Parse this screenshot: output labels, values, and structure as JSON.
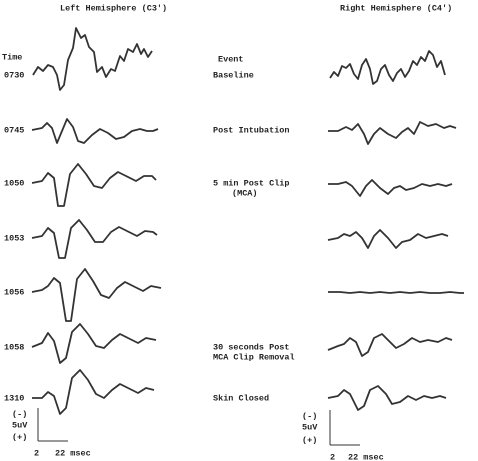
{
  "header": {
    "left_title": "Left Hemisphere (C3')",
    "right_title": "Right Hemisphere (C4')",
    "time_label": "Time",
    "event_label": "Event"
  },
  "rows": [
    {
      "time": "0730",
      "event": [
        "Baseline"
      ]
    },
    {
      "time": "0745",
      "event": [
        "Post Intubation"
      ]
    },
    {
      "time": "1050",
      "event": [
        "5 min Post Clip",
        "(MCA)"
      ]
    },
    {
      "time": "1053"
    },
    {
      "time": "1056"
    },
    {
      "time": "1058",
      "event": [
        "30 seconds Post",
        "MCA Clip Removal"
      ]
    },
    {
      "time": "1310",
      "event": [
        "Skin Closed"
      ]
    }
  ],
  "scale_left": {
    "neg": "(-)",
    "amp": "5uV",
    "pos": "(+)",
    "t0": "2",
    "t1": "22 msec"
  },
  "scale_right": {
    "neg": "(-)",
    "amp": "5uV",
    "pos": "(+)",
    "t0": "2",
    "t1": "22 msec"
  }
}
